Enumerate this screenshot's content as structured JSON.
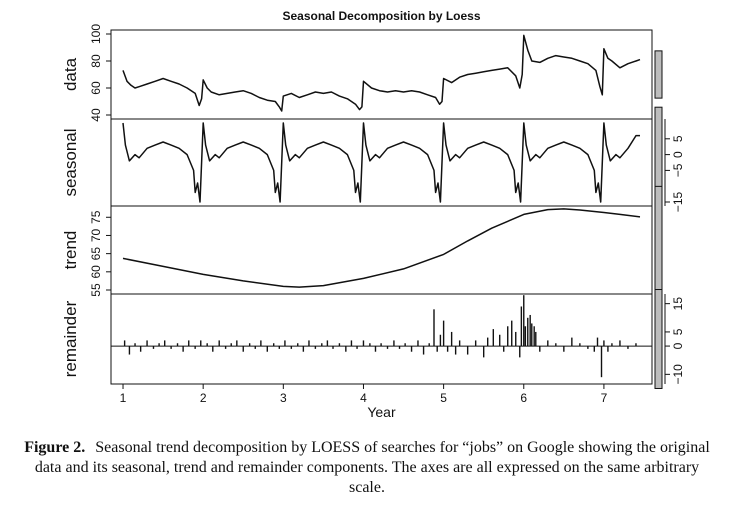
{
  "chart_data": {
    "type": "line",
    "title": "Seasonal Decomposition by Loess",
    "xlabel": "Year",
    "x_range": [
      0.85,
      7.6
    ],
    "x_ticks": [
      1,
      2,
      3,
      4,
      5,
      6,
      7
    ],
    "legend": "none",
    "grid": false,
    "panels": [
      {
        "name": "data",
        "ylim": [
          40,
          100
        ],
        "y_ticks": [
          40,
          60,
          80,
          100
        ],
        "tick_side": "left",
        "scale_bar_height": 35,
        "x": [
          1.0,
          1.05,
          1.1,
          1.15,
          1.2,
          1.3,
          1.4,
          1.5,
          1.6,
          1.7,
          1.8,
          1.9,
          1.95,
          1.98,
          2.0,
          2.05,
          2.1,
          2.2,
          2.3,
          2.4,
          2.5,
          2.6,
          2.7,
          2.8,
          2.9,
          2.95,
          2.98,
          3.0,
          3.1,
          3.2,
          3.3,
          3.4,
          3.5,
          3.6,
          3.7,
          3.8,
          3.9,
          3.95,
          3.98,
          4.0,
          4.1,
          4.2,
          4.3,
          4.4,
          4.5,
          4.6,
          4.7,
          4.8,
          4.9,
          4.95,
          4.98,
          5.0,
          5.1,
          5.2,
          5.3,
          5.4,
          5.5,
          5.6,
          5.7,
          5.8,
          5.9,
          5.95,
          5.98,
          6.0,
          6.05,
          6.1,
          6.2,
          6.3,
          6.4,
          6.5,
          6.6,
          6.7,
          6.8,
          6.9,
          6.95,
          6.98,
          7.0,
          7.05,
          7.1,
          7.2,
          7.3,
          7.4,
          7.45
        ],
        "values": [
          73,
          65,
          62,
          60,
          61,
          63,
          65,
          67,
          65,
          63,
          60,
          56,
          47,
          52,
          66,
          60,
          57,
          55,
          56,
          57,
          58,
          56,
          53,
          51,
          50,
          46,
          43,
          54,
          56,
          53,
          55,
          57,
          56,
          57,
          54,
          52,
          48,
          44,
          46,
          65,
          60,
          58,
          57,
          58,
          57,
          58,
          57,
          55,
          53,
          48,
          50,
          67,
          64,
          68,
          70,
          71,
          72,
          73,
          74,
          75,
          69,
          60,
          70,
          99,
          88,
          80,
          79,
          82,
          84,
          83,
          82,
          80,
          78,
          73,
          61,
          55,
          89,
          82,
          80,
          75,
          78,
          80,
          81
        ]
      },
      {
        "name": "seasonal",
        "ylim": [
          -15,
          10
        ],
        "y_ticks": [
          -15,
          -5,
          0,
          5
        ],
        "y_tick_labels": [
          "−15",
          "−5",
          "0",
          "5"
        ],
        "tick_side": "right",
        "scale_bar_height": 35,
        "x": [
          1.0,
          1.03,
          1.08,
          1.15,
          1.2,
          1.3,
          1.4,
          1.5,
          1.6,
          1.7,
          1.8,
          1.88,
          1.9,
          1.93,
          1.96,
          2.0,
          2.03,
          2.08,
          2.15,
          2.2,
          2.3,
          2.4,
          2.5,
          2.6,
          2.7,
          2.8,
          2.88,
          2.9,
          2.93,
          2.96,
          3.0,
          3.03,
          3.08,
          3.15,
          3.2,
          3.3,
          3.4,
          3.5,
          3.6,
          3.7,
          3.8,
          3.88,
          3.9,
          3.93,
          3.96,
          4.0,
          4.03,
          4.08,
          4.15,
          4.2,
          4.3,
          4.4,
          4.5,
          4.6,
          4.7,
          4.8,
          4.88,
          4.9,
          4.93,
          4.96,
          5.0,
          5.03,
          5.08,
          5.15,
          5.2,
          5.3,
          5.4,
          5.5,
          5.6,
          5.7,
          5.8,
          5.88,
          5.9,
          5.93,
          5.96,
          6.0,
          6.03,
          6.08,
          6.15,
          6.2,
          6.3,
          6.4,
          6.5,
          6.6,
          6.7,
          6.8,
          6.88,
          6.9,
          6.93,
          6.96,
          7.0,
          7.03,
          7.08,
          7.15,
          7.2,
          7.3,
          7.4,
          7.45
        ],
        "values": [
          10,
          3,
          -2,
          0,
          -1,
          2,
          3,
          4,
          3,
          2,
          0,
          -5,
          -12,
          -9,
          -15,
          10,
          3,
          -2,
          0,
          -1,
          2,
          3,
          4,
          3,
          2,
          0,
          -5,
          -12,
          -9,
          -15,
          10,
          3,
          -2,
          0,
          -1,
          2,
          3,
          4,
          3,
          2,
          0,
          -5,
          -12,
          -9,
          -15,
          10,
          3,
          -2,
          0,
          -1,
          2,
          3,
          4,
          3,
          2,
          0,
          -5,
          -12,
          -9,
          -15,
          10,
          3,
          -2,
          0,
          -1,
          2,
          3,
          4,
          3,
          2,
          0,
          -5,
          -12,
          -9,
          -15,
          10,
          3,
          -2,
          0,
          -1,
          2,
          3,
          4,
          3,
          2,
          0,
          -5,
          -12,
          -9,
          -15,
          10,
          3,
          -2,
          0,
          -1,
          2,
          6,
          6
        ]
      },
      {
        "name": "trend",
        "ylim": [
          55,
          77
        ],
        "y_ticks": [
          55,
          60,
          65,
          70,
          75
        ],
        "tick_side": "left",
        "scale_bar_height": 35,
        "x": [
          1.0,
          1.5,
          2.0,
          2.5,
          3.0,
          3.2,
          3.5,
          4.0,
          4.5,
          5.0,
          5.3,
          5.6,
          6.0,
          6.3,
          6.5,
          6.7,
          7.0,
          7.2,
          7.45
        ],
        "values": [
          63.7,
          61.5,
          59.3,
          57.5,
          56.0,
          55.8,
          56.2,
          58.2,
          60.8,
          64.8,
          68.5,
          72.0,
          75.8,
          77.1,
          77.3,
          77.0,
          76.3,
          75.8,
          75.1
        ]
      },
      {
        "name": "remainder",
        "ylim": [
          -12,
          17
        ],
        "y_ticks": [
          -10,
          0,
          5,
          15
        ],
        "y_tick_labels": [
          "−10",
          "0",
          "5",
          "15"
        ],
        "tick_side": "right",
        "scale_bar_height": 35,
        "bars": true,
        "x": [
          1.02,
          1.08,
          1.15,
          1.22,
          1.3,
          1.38,
          1.45,
          1.52,
          1.6,
          1.68,
          1.75,
          1.82,
          1.9,
          1.97,
          2.05,
          2.12,
          2.2,
          2.28,
          2.35,
          2.42,
          2.5,
          2.58,
          2.65,
          2.72,
          2.8,
          2.88,
          2.95,
          3.02,
          3.1,
          3.18,
          3.25,
          3.32,
          3.4,
          3.48,
          3.55,
          3.62,
          3.7,
          3.78,
          3.85,
          3.92,
          4.0,
          4.08,
          4.15,
          4.22,
          4.3,
          4.38,
          4.45,
          4.52,
          4.6,
          4.68,
          4.75,
          4.82,
          4.88,
          4.92,
          4.96,
          5.0,
          5.05,
          5.1,
          5.15,
          5.2,
          5.3,
          5.4,
          5.5,
          5.55,
          5.62,
          5.7,
          5.75,
          5.8,
          5.85,
          5.9,
          5.95,
          5.97,
          6.0,
          6.02,
          6.05,
          6.08,
          6.1,
          6.13,
          6.15,
          6.2,
          6.3,
          6.4,
          6.5,
          6.6,
          6.7,
          6.8,
          6.88,
          6.92,
          6.97,
          7.0,
          7.05,
          7.1,
          7.2,
          7.3,
          7.4
        ],
        "values": [
          2,
          -3,
          1,
          -2,
          2,
          -1,
          1,
          2,
          -1,
          1,
          -2,
          2,
          -1,
          2,
          1,
          -2,
          2,
          -1,
          1,
          2,
          -2,
          1,
          -1,
          2,
          -2,
          1,
          -1,
          2,
          -1,
          1,
          -2,
          2,
          -1,
          1,
          2,
          -1,
          1,
          -2,
          2,
          -1,
          2,
          1,
          -2,
          1,
          -1,
          2,
          -1,
          1,
          -2,
          2,
          -3,
          1,
          13,
          -2,
          4,
          9,
          -2,
          5,
          -3,
          2,
          -3,
          2,
          -4,
          3,
          6,
          4,
          -2,
          7,
          9,
          5,
          -4,
          14,
          18,
          7,
          10,
          11,
          8,
          7,
          5,
          -2,
          2,
          1,
          -2,
          3,
          1,
          -1,
          -2,
          3,
          -11,
          2,
          -2,
          1,
          2,
          -1,
          1
        ]
      }
    ]
  },
  "caption": {
    "label": "Figure 2.",
    "text": "Seasonal trend decomposition by LOESS of searches for “jobs” on Google showing the original data and its seasonal, trend and remainder components. The axes are all expressed on the same arbitrary scale."
  }
}
